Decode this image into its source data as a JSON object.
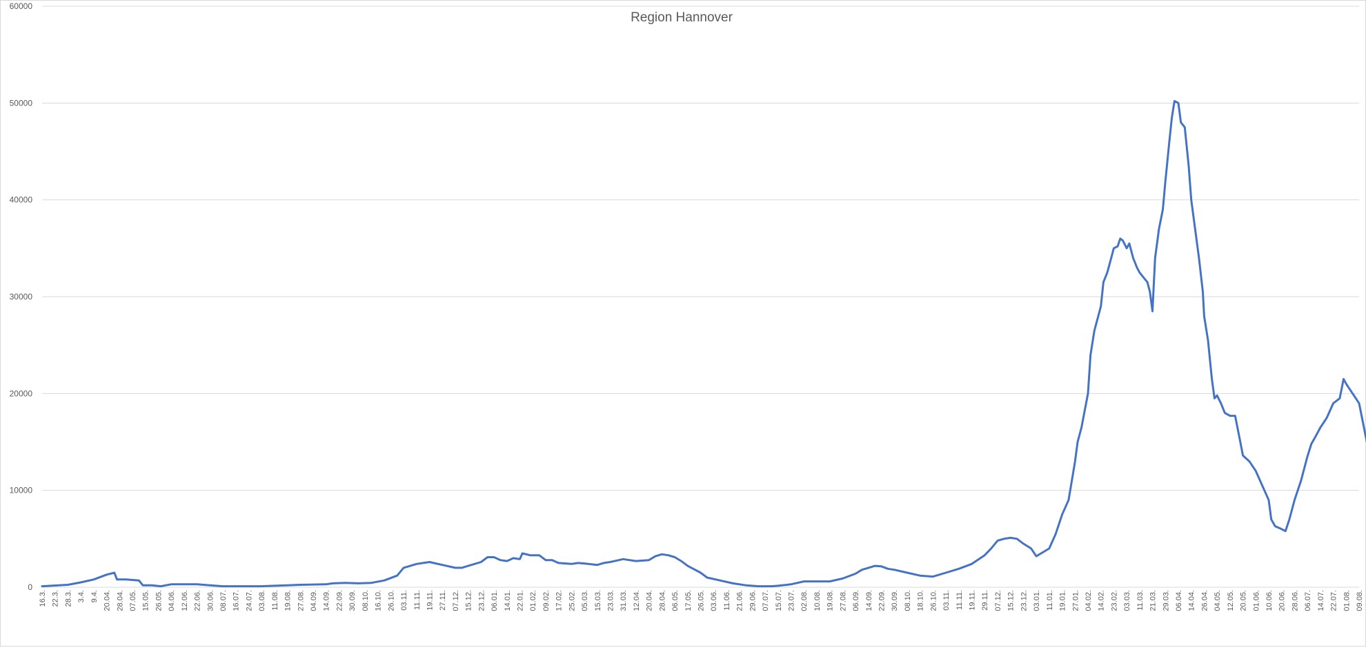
{
  "chart_data": {
    "type": "line",
    "title": "Region Hannover",
    "xlabel": "",
    "ylabel": "",
    "ylim": [
      0,
      60000
    ],
    "yticks": [
      0,
      10000,
      20000,
      30000,
      40000,
      50000,
      60000
    ],
    "ytick_labels": [
      "0",
      "10000",
      "20000",
      "30000",
      "40000",
      "50000",
      "60000"
    ],
    "grid": "horizontal",
    "legend": "none",
    "line_color": "#4472c4",
    "x_tick_labels": [
      "16.3.",
      "22.3.",
      "28.3.",
      "3.4.",
      "9.4.",
      "20.04.",
      "28.04.",
      "07.05.",
      "15.05.",
      "26.05.",
      "04.06.",
      "12.06.",
      "22.06.",
      "30.06.",
      "08.07.",
      "16.07.",
      "24.07.",
      "03.08.",
      "11.08.",
      "19.08.",
      "27.08.",
      "04.09.",
      "14.09.",
      "22.09.",
      "30.09.",
      "08.10.",
      "16.10.",
      "26.10.",
      "03.11.",
      "11.11.",
      "19.11.",
      "27.11.",
      "07.12.",
      "15.12.",
      "23.12.",
      "06.01.",
      "14.01.",
      "22.01.",
      "01.02.",
      "09.02.",
      "17.02.",
      "25.02.",
      "05.03.",
      "15.03.",
      "23.03.",
      "31.03.",
      "12.04.",
      "20.04.",
      "28.04.",
      "06.05.",
      "17.05.",
      "26.05.",
      "03.06.",
      "11.06.",
      "21.06.",
      "29.06.",
      "07.07.",
      "15.07.",
      "23.07.",
      "02.08.",
      "10.08.",
      "19.08.",
      "27.08.",
      "06.09.",
      "14.09.",
      "22.09.",
      "30.09.",
      "08.10.",
      "18.10.",
      "26.10.",
      "03.11.",
      "11.11.",
      "19.11.",
      "29.11.",
      "07.12.",
      "15.12.",
      "23.12.",
      "03.01.",
      "11.01.",
      "19.01.",
      "27.01.",
      "04.02.",
      "14.02.",
      "23.02.",
      "03.03.",
      "11.03.",
      "21.03.",
      "29.03.",
      "06.04.",
      "14.04.",
      "26.04.",
      "04.05.",
      "12.05.",
      "20.05.",
      "01.06.",
      "10.06.",
      "20.06.",
      "28.06.",
      "06.07.",
      "14.07.",
      "22.07.",
      "01.08.",
      "09.08."
    ],
    "series": [
      {
        "points": [
          [
            0.0,
            100
          ],
          [
            2.0,
            250
          ],
          [
            3.0,
            500
          ],
          [
            4.0,
            800
          ],
          [
            5.0,
            1300
          ],
          [
            5.6,
            1500
          ],
          [
            5.8,
            800
          ],
          [
            6.5,
            800
          ],
          [
            7.5,
            700
          ],
          [
            7.8,
            200
          ],
          [
            8.5,
            200
          ],
          [
            9.2,
            100
          ],
          [
            9.6,
            200
          ],
          [
            10.0,
            300
          ],
          [
            11.0,
            300
          ],
          [
            12.0,
            300
          ],
          [
            13.0,
            200
          ],
          [
            14.0,
            100
          ],
          [
            15.0,
            100
          ],
          [
            17.0,
            100
          ],
          [
            18.0,
            150
          ],
          [
            19.0,
            200
          ],
          [
            20.0,
            250
          ],
          [
            22.0,
            300
          ],
          [
            22.5,
            400
          ],
          [
            23.5,
            450
          ],
          [
            24.5,
            400
          ],
          [
            25.5,
            450
          ],
          [
            26.5,
            700
          ],
          [
            27.5,
            1200
          ],
          [
            28.0,
            2000
          ],
          [
            29.0,
            2400
          ],
          [
            30.0,
            2600
          ],
          [
            31.0,
            2300
          ],
          [
            32.0,
            2000
          ],
          [
            32.5,
            2000
          ],
          [
            33.0,
            2200
          ],
          [
            34.0,
            2600
          ],
          [
            34.5,
            3100
          ],
          [
            35.0,
            3100
          ],
          [
            35.5,
            2800
          ],
          [
            36.0,
            2700
          ],
          [
            36.5,
            3000
          ],
          [
            37.0,
            2900
          ],
          [
            37.2,
            3500
          ],
          [
            37.8,
            3300
          ],
          [
            38.5,
            3300
          ],
          [
            39.0,
            2800
          ],
          [
            39.5,
            2800
          ],
          [
            40.0,
            2500
          ],
          [
            41.0,
            2400
          ],
          [
            41.5,
            2500
          ],
          [
            42.0,
            2450
          ],
          [
            43.0,
            2300
          ],
          [
            43.5,
            2500
          ],
          [
            44.0,
            2600
          ],
          [
            45.0,
            2900
          ],
          [
            46.0,
            2700
          ],
          [
            47.0,
            2800
          ],
          [
            47.5,
            3200
          ],
          [
            48.0,
            3400
          ],
          [
            48.5,
            3300
          ],
          [
            49.0,
            3100
          ],
          [
            49.5,
            2700
          ],
          [
            50.0,
            2200
          ],
          [
            51.0,
            1500
          ],
          [
            51.5,
            1000
          ],
          [
            52.5,
            700
          ],
          [
            53.5,
            400
          ],
          [
            54.5,
            200
          ],
          [
            55.5,
            100
          ],
          [
            56.5,
            100
          ],
          [
            57.0,
            150
          ],
          [
            58.0,
            300
          ],
          [
            59.0,
            600
          ],
          [
            60.0,
            600
          ],
          [
            61.0,
            600
          ],
          [
            62.0,
            900
          ],
          [
            63.0,
            1400
          ],
          [
            63.5,
            1800
          ],
          [
            64.0,
            2000
          ],
          [
            64.5,
            2200
          ],
          [
            65.0,
            2150
          ],
          [
            65.5,
            1900
          ],
          [
            66.0,
            1800
          ],
          [
            67.0,
            1500
          ],
          [
            68.0,
            1200
          ],
          [
            69.0,
            1100
          ],
          [
            70.0,
            1500
          ],
          [
            71.0,
            1900
          ],
          [
            72.0,
            2400
          ],
          [
            73.0,
            3300
          ],
          [
            73.5,
            4000
          ],
          [
            74.0,
            4800
          ],
          [
            74.5,
            5000
          ],
          [
            75.0,
            5100
          ],
          [
            75.5,
            5000
          ],
          [
            76.0,
            4500
          ],
          [
            76.6,
            4000
          ],
          [
            77.0,
            3200
          ],
          [
            77.5,
            3600
          ],
          [
            78.0,
            4000
          ],
          [
            78.5,
            5500
          ],
          [
            79.0,
            7500
          ],
          [
            79.5,
            9000
          ],
          [
            80.0,
            13000
          ],
          [
            80.2,
            15000
          ],
          [
            80.5,
            16500
          ],
          [
            81.0,
            20000
          ],
          [
            81.2,
            24000
          ],
          [
            81.5,
            26500
          ],
          [
            82.0,
            29000
          ],
          [
            82.2,
            31500
          ],
          [
            82.5,
            32500
          ],
          [
            82.8,
            34000
          ],
          [
            83.0,
            35000
          ],
          [
            83.3,
            35200
          ],
          [
            83.5,
            36000
          ],
          [
            83.7,
            35800
          ],
          [
            84.0,
            35000
          ],
          [
            84.2,
            35500
          ],
          [
            84.5,
            34000
          ],
          [
            84.8,
            33000
          ],
          [
            85.0,
            32500
          ],
          [
            85.3,
            32000
          ],
          [
            85.6,
            31500
          ],
          [
            85.8,
            30500
          ],
          [
            86.0,
            28500
          ],
          [
            86.2,
            34000
          ],
          [
            86.5,
            37000
          ],
          [
            86.8,
            39000
          ],
          [
            87.0,
            42000
          ],
          [
            87.3,
            46000
          ],
          [
            87.5,
            48500
          ],
          [
            87.7,
            50200
          ],
          [
            88.0,
            50000
          ],
          [
            88.2,
            48000
          ],
          [
            88.5,
            47500
          ],
          [
            88.8,
            43500
          ],
          [
            89.0,
            40000
          ],
          [
            89.3,
            37000
          ],
          [
            89.6,
            34000
          ],
          [
            89.9,
            30500
          ],
          [
            90.0,
            28000
          ],
          [
            90.3,
            25500
          ],
          [
            90.6,
            21500
          ],
          [
            90.8,
            19500
          ],
          [
            91.0,
            19800
          ],
          [
            91.3,
            19000
          ],
          [
            91.6,
            18000
          ],
          [
            92.0,
            17700
          ],
          [
            92.4,
            17700
          ],
          [
            92.8,
            15000
          ],
          [
            93.0,
            13600
          ],
          [
            93.5,
            13000
          ],
          [
            94.0,
            12000
          ],
          [
            94.5,
            10500
          ],
          [
            95.0,
            9000
          ],
          [
            95.2,
            7000
          ],
          [
            95.5,
            6300
          ],
          [
            96.0,
            6000
          ],
          [
            96.3,
            5800
          ],
          [
            96.6,
            7000
          ],
          [
            97.0,
            9000
          ],
          [
            97.5,
            11000
          ],
          [
            98.0,
            13500
          ],
          [
            98.3,
            14800
          ],
          [
            98.6,
            15500
          ],
          [
            99.0,
            16500
          ],
          [
            99.5,
            17500
          ],
          [
            100.0,
            19000
          ],
          [
            100.5,
            19500
          ],
          [
            100.8,
            21500
          ],
          [
            101.0,
            21000
          ],
          [
            101.5,
            20000
          ],
          [
            102.0,
            19000
          ],
          [
            102.3,
            17000
          ],
          [
            102.6,
            15000
          ],
          [
            102.8,
            14000
          ],
          [
            103.0,
            14500
          ],
          [
            103.2,
            14600
          ],
          [
            103.4,
            12600
          ],
          [
            103.6,
            12500
          ]
        ]
      }
    ]
  }
}
